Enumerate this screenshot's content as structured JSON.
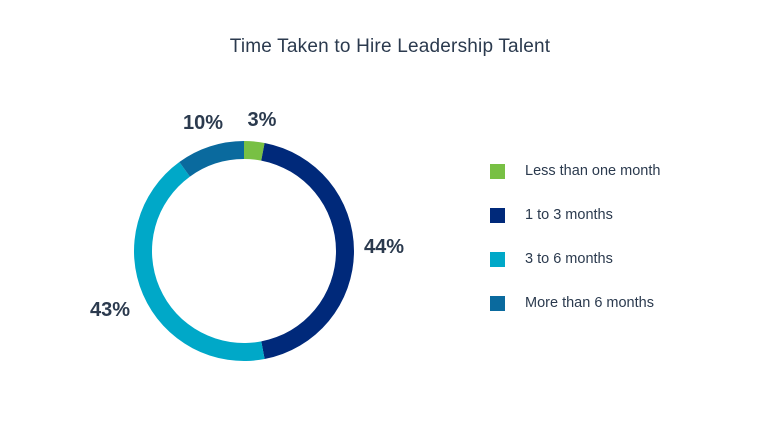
{
  "chart_data": {
    "type": "pie",
    "title": "Time Taken to Hire Leadership Talent",
    "donut": true,
    "legend_position": "right",
    "categories": [
      "Less than one month",
      "1 to 3 months",
      "3 to 6 months",
      "More than 6 months"
    ],
    "values": [
      3,
      44,
      43,
      10
    ],
    "labels": [
      "3%",
      "44%",
      "43%",
      "10%"
    ],
    "colors": [
      "#78c044",
      "#00297a",
      "#00a8c8",
      "#0a6a9e"
    ]
  }
}
